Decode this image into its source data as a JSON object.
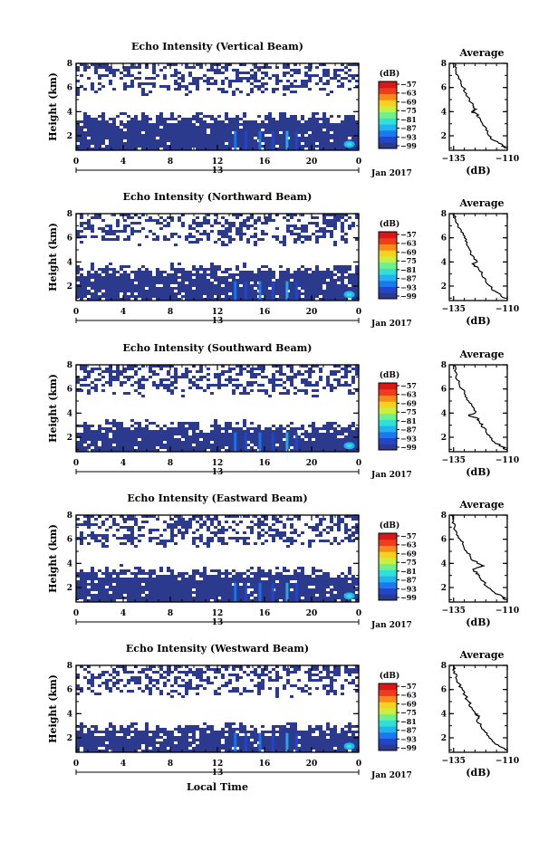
{
  "figure": {
    "common_xlabel": "Local Time",
    "cbar_unit": "(dB)",
    "avg_title": "Average",
    "avg_xlabel": "(dB)",
    "date_label": "Jan 2017",
    "date_day": "13"
  },
  "colorbar": {
    "ticks": [
      "−57",
      "−63",
      "−69",
      "−75",
      "−81",
      "−87",
      "−93",
      "−99"
    ],
    "colors": [
      "#2b3a8c",
      "#2346c8",
      "#1a78f0",
      "#22b4f0",
      "#2ee0d8",
      "#6ef08a",
      "#c8f040",
      "#f8d020",
      "#f88a18",
      "#f03c1c",
      "#d81818"
    ]
  },
  "chart_data": [
    {
      "type": "heatmap",
      "title": "Echo Intensity (Vertical Beam)",
      "ylabel": "Height (km)",
      "xlabel": "",
      "x_ticks": [
        "0",
        "4",
        "8",
        "12",
        "16",
        "20",
        "0"
      ],
      "y_ticks": [
        "2",
        "4",
        "6",
        "8"
      ],
      "xlim": [
        0,
        24
      ],
      "ylim": [
        0.8,
        8.0
      ],
      "lower_layer_top_km": 3.8,
      "avg_profile": {
        "type": "line",
        "title": "Average",
        "xlabel": "(dB)",
        "x_ticks": [
          "−135",
          "−110"
        ],
        "y_ticks": [
          "2",
          "4",
          "6",
          "8"
        ],
        "xlim": [
          -137,
          -110
        ],
        "ylim": [
          0.8,
          8.0
        ],
        "height": [
          8.0,
          7.5,
          7.0,
          6.5,
          6.0,
          5.5,
          5.0,
          4.5,
          4.2,
          4.0,
          3.8,
          3.5,
          3.0,
          2.5,
          2.0,
          1.6,
          1.2,
          1.0
        ],
        "db": [
          -134.5,
          -134,
          -133,
          -131.5,
          -130.5,
          -129,
          -127.5,
          -126,
          -124.5,
          -126.5,
          -124,
          -123,
          -121.5,
          -120,
          -118.5,
          -116,
          -112,
          -111
        ]
      }
    },
    {
      "type": "heatmap",
      "title": "Echo Intensity (Northward Beam)",
      "ylabel": "Height (km)",
      "xlabel": "",
      "x_ticks": [
        "0",
        "4",
        "8",
        "12",
        "16",
        "20",
        "0"
      ],
      "y_ticks": [
        "2",
        "4",
        "6",
        "8"
      ],
      "xlim": [
        0,
        24
      ],
      "ylim": [
        0.8,
        8.0
      ],
      "lower_layer_top_km": 3.6,
      "avg_profile": {
        "type": "line",
        "title": "Average",
        "xlabel": "(dB)",
        "x_ticks": [
          "−135",
          "−110"
        ],
        "y_ticks": [
          "2",
          "4",
          "6",
          "8"
        ],
        "xlim": [
          -137,
          -110
        ],
        "ylim": [
          0.8,
          8.0
        ],
        "height": [
          8.0,
          7.5,
          7.0,
          6.5,
          6.0,
          5.5,
          5.0,
          4.5,
          4.0,
          3.8,
          3.5,
          3.0,
          2.5,
          2.0,
          1.6,
          1.2,
          1.0
        ],
        "db": [
          -134.5,
          -134,
          -133,
          -131.5,
          -130,
          -129,
          -127.5,
          -126,
          -124,
          -126,
          -123.5,
          -122,
          -120,
          -118,
          -116,
          -113,
          -111
        ]
      }
    },
    {
      "type": "heatmap",
      "title": "Echo Intensity (Southward Beam)",
      "ylabel": "Height (km)",
      "xlabel": "",
      "x_ticks": [
        "0",
        "4",
        "8",
        "12",
        "16",
        "20",
        "0"
      ],
      "y_ticks": [
        "2",
        "4",
        "6",
        "8"
      ],
      "xlim": [
        0,
        24
      ],
      "ylim": [
        0.8,
        8.0
      ],
      "lower_layer_top_km": 3.2,
      "avg_profile": {
        "type": "line",
        "title": "Average",
        "xlabel": "(dB)",
        "x_ticks": [
          "−135",
          "−110"
        ],
        "y_ticks": [
          "2",
          "4",
          "6",
          "8"
        ],
        "xlim": [
          -137,
          -110
        ],
        "ylim": [
          0.8,
          8.0
        ],
        "height": [
          8.0,
          7.5,
          7.0,
          6.5,
          6.0,
          5.5,
          5.0,
          4.5,
          4.0,
          3.8,
          3.6,
          3.3,
          3.0,
          2.5,
          2.0,
          1.6,
          1.2,
          1.0
        ],
        "db": [
          -135,
          -134.5,
          -134,
          -132.5,
          -131,
          -129.5,
          -128,
          -126,
          -125,
          -128,
          -124,
          -123,
          -122,
          -120,
          -118,
          -116,
          -112,
          -111
        ]
      }
    },
    {
      "type": "heatmap",
      "title": "Echo Intensity (Eastward Beam)",
      "ylabel": "Height (km)",
      "xlabel": "",
      "x_ticks": [
        "0",
        "4",
        "8",
        "12",
        "16",
        "20",
        "0"
      ],
      "y_ticks": [
        "2",
        "4",
        "6",
        "8"
      ],
      "xlim": [
        0,
        24
      ],
      "ylim": [
        0.8,
        8.0
      ],
      "lower_layer_top_km": 3.6,
      "avg_profile": {
        "type": "line",
        "title": "Average",
        "xlabel": "(dB)",
        "x_ticks": [
          "−135",
          "−110"
        ],
        "y_ticks": [
          "2",
          "4",
          "6",
          "8"
        ],
        "xlim": [
          -137,
          -110
        ],
        "ylim": [
          0.8,
          8.0
        ],
        "height": [
          8.0,
          7.5,
          7.0,
          6.5,
          6.0,
          5.5,
          5.0,
          4.5,
          4.0,
          3.8,
          3.5,
          3.2,
          3.0,
          2.5,
          2.0,
          1.6,
          1.2,
          1.0
        ],
        "db": [
          -136,
          -135,
          -134.5,
          -133.5,
          -132,
          -130.5,
          -129,
          -127,
          -124,
          -121,
          -126,
          -124,
          -123,
          -121,
          -119,
          -116,
          -112,
          -111
        ]
      }
    },
    {
      "type": "heatmap",
      "title": "Echo Intensity (Westward Beam)",
      "ylabel": "Height (km)",
      "xlabel": "Local Time",
      "x_ticks": [
        "0",
        "4",
        "8",
        "12",
        "16",
        "20",
        "0"
      ],
      "y_ticks": [
        "2",
        "4",
        "6",
        "8"
      ],
      "xlim": [
        0,
        24
      ],
      "ylim": [
        0.8,
        8.0
      ],
      "lower_layer_top_km": 3.1,
      "avg_profile": {
        "type": "line",
        "title": "Average",
        "xlabel": "(dB)",
        "x_ticks": [
          "−135",
          "−110"
        ],
        "y_ticks": [
          "2",
          "4",
          "6",
          "8"
        ],
        "xlim": [
          -137,
          -110
        ],
        "ylim": [
          0.8,
          8.0
        ],
        "height": [
          8.0,
          7.5,
          7.0,
          6.5,
          6.0,
          5.5,
          5.0,
          4.5,
          4.0,
          3.8,
          3.5,
          3.0,
          2.5,
          2.0,
          1.6,
          1.2,
          1.0
        ],
        "db": [
          -135,
          -134.5,
          -134,
          -132.5,
          -131,
          -129.5,
          -128,
          -126.5,
          -125,
          -123,
          -124,
          -122.5,
          -120.5,
          -118.5,
          -116,
          -112.5,
          -111
        ]
      }
    }
  ]
}
